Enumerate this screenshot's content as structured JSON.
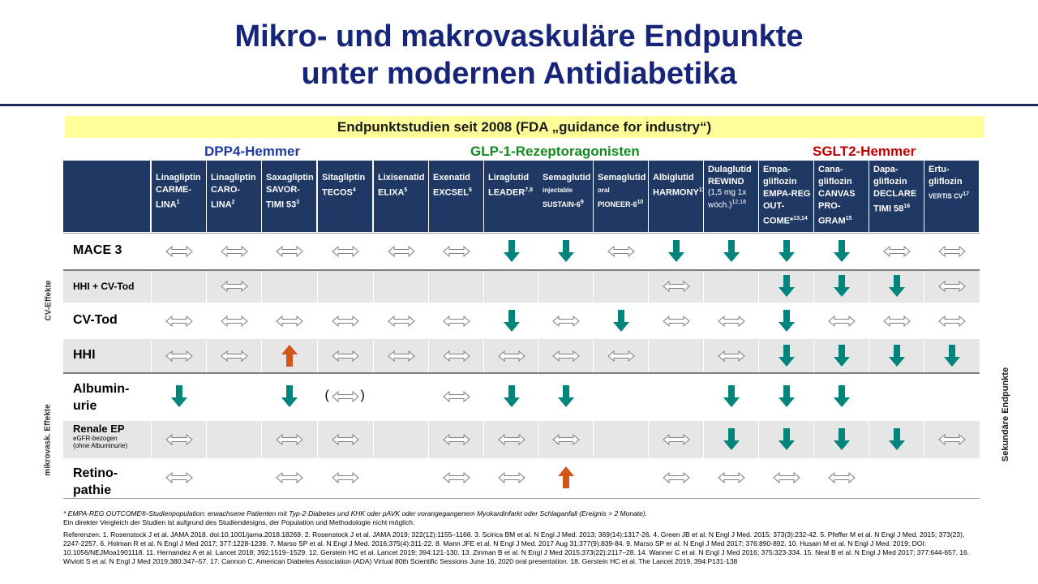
{
  "title": {
    "line1": "Mikro- und makrovaskuläre Endpunkte",
    "line2": "unter modernen Antidiabetika"
  },
  "banner": "Endpunktstudien seit 2008  (FDA „guidance for industry“)",
  "groups": {
    "dpp4": "DPP4-Hemmer",
    "glp1": "GLP-1-Rezeptoragonisten",
    "sglt2": "SGLT2-Hemmer"
  },
  "columns": [
    {
      "drug": "Linagliptin",
      "trial": "CARME-",
      "trial2": "LINA",
      "sup": "1",
      "small": ""
    },
    {
      "drug": "Linagliptin",
      "trial": "CARO-",
      "trial2": "LINA",
      "sup": "2",
      "small": ""
    },
    {
      "drug": "Saxagliptin",
      "trial": "SAVOR-",
      "trial2": "TIMI 53",
      "sup": "3",
      "small": ""
    },
    {
      "drug": "Sitagliptin",
      "trial": "TECOS",
      "trial2": "",
      "sup": "4",
      "small": ""
    },
    {
      "drug": "Lixisenatid",
      "trial": "ELIXA",
      "trial2": "",
      "sup": "5",
      "small": ""
    },
    {
      "drug": "Exenatid",
      "trial": "EXCSEL",
      "trial2": "",
      "sup": "6",
      "small": ""
    },
    {
      "drug": "Liraglutid",
      "trial": "LEADER",
      "trial2": "",
      "sup": "7,8",
      "small": ""
    },
    {
      "drug": "Semaglutid",
      "trial": "SUSTAIN-6",
      "trial2": "",
      "sup": "9",
      "small": "injectable"
    },
    {
      "drug": "Semaglutid",
      "trial": "PIONEER-6",
      "trial2": "",
      "sup": "10",
      "small": "oral"
    },
    {
      "drug": "Albiglutid",
      "trial": "HARMONY",
      "trial2": "",
      "sup": "11",
      "small": ""
    },
    {
      "drug": "Dulaglutid",
      "trial": "REWIND",
      "trial2": "(1,5 mg 1x wöch.)",
      "sup": "12,18",
      "small": ""
    },
    {
      "drug": "Empa-",
      "trial": "gliflozin",
      "trial2": "EMPA-REG OUT-COME*",
      "sup": "13,14",
      "small": ""
    },
    {
      "drug": "Cana-",
      "trial": "gliflozin",
      "trial2": "CANVAS PRO-GRAM",
      "sup": "15",
      "small": ""
    },
    {
      "drug": "Dapa-",
      "trial": "gliflozin",
      "trial2": "DECLARE TIMI 58",
      "sup": "16",
      "small": ""
    },
    {
      "drug": "Ertu-",
      "trial": "gliflozin",
      "trial2": "VERTIS CV",
      "sup": "17",
      "small": ""
    }
  ],
  "rows": [
    {
      "label": "MACE 3",
      "values": [
        "n",
        "n",
        "n",
        "n",
        "n",
        "n",
        "d",
        "d",
        "n",
        "d",
        "d",
        "d",
        "d",
        "n",
        "n"
      ]
    },
    {
      "label": "HHI + CV-Tod",
      "values": [
        "",
        "n",
        "",
        "",
        "",
        "",
        "",
        "",
        "",
        "n",
        "",
        "d",
        "d",
        "d",
        "n"
      ]
    },
    {
      "label": "CV-Tod",
      "values": [
        "n",
        "n",
        "n",
        "n",
        "n",
        "n",
        "d",
        "n",
        "d",
        "n",
        "n",
        "d",
        "n",
        "n",
        "n"
      ]
    },
    {
      "label": "HHI",
      "values": [
        "n",
        "n",
        "u",
        "n",
        "n",
        "n",
        "n",
        "n",
        "n",
        "",
        "n",
        "d",
        "d",
        "d",
        "d"
      ]
    },
    {
      "label": "Albumin-",
      "label2": "urie",
      "values": [
        "d",
        "",
        "d",
        "p",
        "",
        "n",
        "d",
        "d",
        "",
        "",
        "d",
        "d",
        "d",
        "",
        ""
      ]
    },
    {
      "label": "Renale EP",
      "label2": "eGFR-bezogen",
      "label3": "(ohne Albuminurie)",
      "values": [
        "n",
        "",
        "n",
        "n",
        "",
        "n",
        "n",
        "n",
        "",
        "n",
        "d",
        "d",
        "d",
        "d",
        "n"
      ]
    },
    {
      "label": "Retino-",
      "label2": "pathie",
      "values": [
        "n",
        "",
        "n",
        "n",
        "",
        "n",
        "n",
        "u",
        "",
        "n",
        "n",
        "n",
        "n",
        "",
        ""
      ]
    }
  ],
  "side_labels": {
    "cv": "CV-Effekte",
    "micro": "mikrovask. Effekte",
    "secondary": "Sekundäre Endpunkte"
  },
  "footnote": "* EMPA-REG OUTCOME®-Studienpopulation: erwachsene Patienten mit Typ-2-Diabetes und KHK oder pAVK oder vorangegangenem Myokardinfarkt oder Schlaganfall (Ereignis > 2 Monate).",
  "footnote2": "Ein direkter Vergleich der Studien ist aufgrund des Studiendesigns, der Population  und Methodologie  nicht möglich.",
  "references": "Referenzen: 1. Rosenstock J et al. JAMA 2018. doi:10.1001/jama.2018.18269.  2. Rosenstock J et al. JAMA 2019; 322(12):1155–1166.  3. Scirica BM et al. N Engl J Med. 2013; 369(14):1317-26. 4. Green JB et al. N Engl J Med. 2015; 373(3):232-42. 5. Pfeffer M et al. N Engl J Med. 2015; 373(23), 2247-2257. 6. Holman  R et al. N Engl J Med 2017; 377:1228-1239. 7. Marso SP et al. N Engl J Med. 2016;375(4):311-22. 8. Mann JFE et al. N Engl J Med. 2017 Aug 31;377(9):839-84.  9. Marso SP er al. N Engl J Med 2017; 376:890-892. 10. Husain M et al. N Engl J Med. 2019; DOI:  10.1056/NEJMoa1901118.  11. Hernandez A et al. Lancet 2018; 392:1519–1529.  12. Gerstein HC et al. Lancet 2019; 394:121-130. 13. Zinman B et al. N Engl J Med 2015;373(22):2117–28. 14. Wanner C et al. N Engl J Med 2016; 375:323-334. 15. Neal B et al. N Engl J Med 2017; 377:644-657. 16. Wiviott S et al. N Engl J Med 2019;380:347–57. 17. Cannon C. American Diabetes Association (ADA)  Virtual 80th Scientific Sessions June 16, 2020 oral presentation. 18. Gerstein HC et al. The Lancet 2019, 394:P131-138",
  "colors": {
    "title": "#16257a",
    "header_bg": "#1f3864",
    "down_arrow": "#00857c",
    "up_arrow": "#d4541a",
    "banner": "#ffff99"
  },
  "icon_legend": {
    "n": "neutral-double-arrow-icon",
    "d": "down-arrow-icon",
    "u": "up-arrow-icon",
    "p": "neutral-double-arrow-in-parens-icon"
  }
}
